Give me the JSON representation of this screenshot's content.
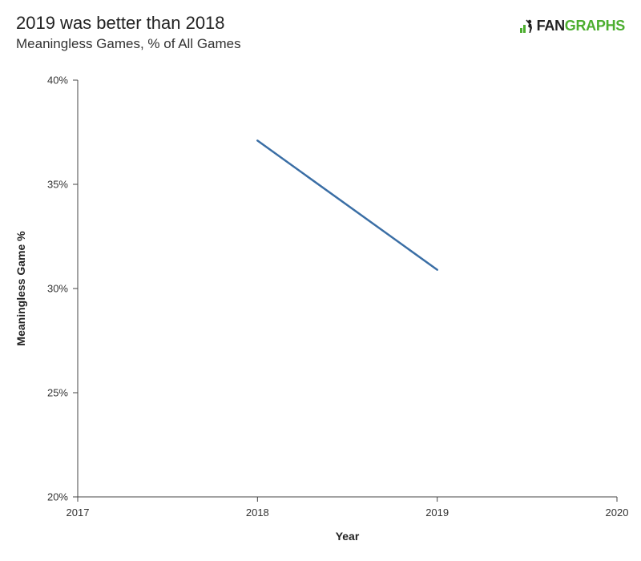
{
  "header": {
    "title": "2019 was better than 2018",
    "subtitle": "Meaningless Games, % of All Games"
  },
  "logo": {
    "text_dark": "FAN",
    "text_green": "GRAPHS",
    "icon": "batter-icon",
    "accent_color": "#4cae2f"
  },
  "chart_data": {
    "type": "line",
    "title": "2019 was better than 2018",
    "subtitle": "Meaningless Games, % of All Games",
    "xlabel": "Year",
    "ylabel": "Meaningless Game %",
    "xlim": [
      2017,
      2020
    ],
    "ylim": [
      20,
      40
    ],
    "x_ticks": [
      2017,
      2018,
      2019,
      2020
    ],
    "x_tick_labels": [
      "2017",
      "2018",
      "2019",
      "2020"
    ],
    "y_ticks": [
      20,
      25,
      30,
      35,
      40
    ],
    "y_tick_labels": [
      "20%",
      "25%",
      "30%",
      "35%",
      "40%"
    ],
    "grid": false,
    "legend": "none",
    "series": [
      {
        "color": "#3a6ea5",
        "x": [
          2018,
          2019
        ],
        "values": [
          37.1,
          30.9
        ]
      }
    ]
  }
}
